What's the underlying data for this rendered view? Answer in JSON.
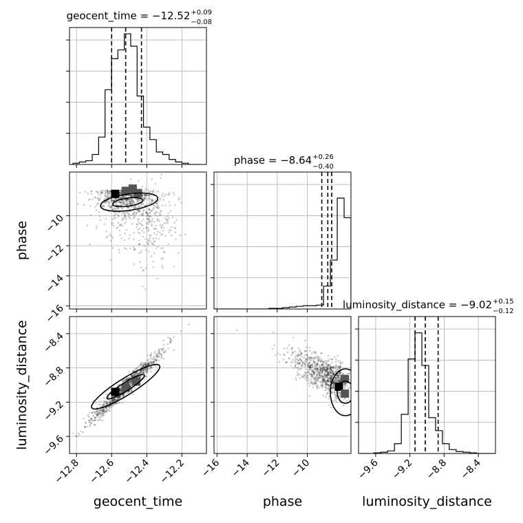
{
  "chart_data": {
    "type": "corner",
    "parameters": [
      "geocent_time",
      "phase",
      "luminosity_distance"
    ],
    "diagonal_titles": [
      {
        "prefix": "geocent_time = −12.52",
        "plus": "+0.09",
        "minus": "−0.08"
      },
      {
        "prefix": "phase = −8.64",
        "plus": "+0.26",
        "minus": "−0.40"
      },
      {
        "prefix": "luminosity_distance = −9.02",
        "plus": "+0.15",
        "minus": "−0.12"
      }
    ],
    "axis_labels": {
      "x": [
        "geocent_time",
        "phase",
        "luminosity_distance"
      ],
      "y": [
        "phase",
        "luminosity_distance"
      ]
    },
    "ranges": {
      "geocent_time": [
        -12.84,
        -12.06
      ],
      "phase": [
        -16.2,
        -7.1
      ],
      "luminosity_distance": [
        -9.8,
        -8.2
      ]
    },
    "ticks": {
      "geocent_time": {
        "values": [
          -12.8,
          -12.6,
          -12.4,
          -12.2
        ],
        "labels": [
          "−12.8",
          "−12.6",
          "−12.4",
          "−12.2"
        ]
      },
      "phase": {
        "values": [
          -16,
          -14,
          -12,
          -10
        ],
        "labels": [
          "−16",
          "−14",
          "−12",
          "−10"
        ]
      },
      "luminosity_distance": {
        "values": [
          -9.6,
          -9.2,
          -8.8,
          -8.4
        ],
        "labels": [
          "−9.6",
          "−9.2",
          "−8.8",
          "−8.4"
        ]
      }
    },
    "quantiles": {
      "geocent_time": [
        -12.6,
        -12.52,
        -12.43
      ],
      "phase": [
        -9.04,
        -8.64,
        -8.38
      ],
      "luminosity_distance": [
        -9.14,
        -9.02,
        -8.87
      ]
    },
    "histograms": {
      "geocent_time": {
        "edges_start": -12.82,
        "bin_width": 0.0365,
        "counts": [
          1,
          2,
          3,
          8,
          22,
          60,
          85,
          92,
          105,
          95,
          55,
          30,
          20,
          10,
          8,
          4,
          2,
          1,
          0,
          0
        ],
        "ymax": 110
      },
      "phase": {
        "edges_start": -16.2,
        "bin_width": 0.455,
        "counts": [
          0,
          0,
          0,
          0,
          0,
          0,
          0,
          0,
          1,
          1,
          2,
          3,
          4,
          5,
          5,
          6,
          35,
          75,
          170,
          140
        ],
        "ymax": 210
      },
      "luminosity_distance": {
        "edges_start": -9.78,
        "bin_width": 0.08,
        "counts": [
          0,
          0,
          1,
          2,
          4,
          15,
          60,
          145,
          185,
          135,
          55,
          35,
          15,
          6,
          3,
          2,
          1,
          0,
          0,
          0
        ],
        "ymax": 210
      }
    },
    "density_2d": {
      "geocent_time_vs_phase": {
        "center": [
          -12.52,
          -8.64
        ],
        "high_density_cells": [
          [
            -12.58,
            -8.55
          ],
          [
            -12.52,
            -8.35
          ],
          [
            -12.48,
            -8.2
          ],
          [
            -12.45,
            -8.5
          ]
        ]
      },
      "geocent_time_vs_luminosity_distance": {
        "center": [
          -12.52,
          -9.02
        ],
        "high_density_cells": [
          [
            -12.58,
            -9.08
          ],
          [
            -12.52,
            -9.03
          ],
          [
            -12.46,
            -8.96
          ]
        ]
      },
      "phase_vs_luminosity_distance": {
        "center": [
          -8.64,
          -9.02
        ],
        "high_density_cells": [
          [
            -7.9,
            -9.02
          ],
          [
            -7.5,
            -8.93
          ],
          [
            -7.5,
            -9.1
          ]
        ]
      }
    },
    "grid": true
  }
}
